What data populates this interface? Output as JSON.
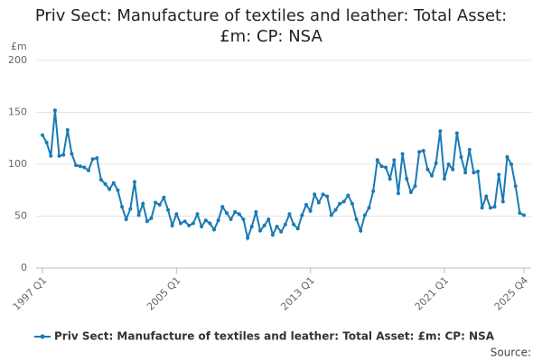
{
  "chart_data": {
    "type": "line",
    "title": "Priv Sect: Manufacture of textiles and leather: Total Asset: £m: CP: NSA",
    "y_label": "£m",
    "source": "Source:",
    "categories": [
      "1997 Q1",
      null,
      null,
      null,
      null,
      null,
      null,
      null,
      null,
      null,
      null,
      null,
      null,
      null,
      null,
      null,
      null,
      null,
      null,
      null,
      null,
      null,
      null,
      null,
      null,
      null,
      null,
      null,
      null,
      null,
      null,
      null,
      "2005 Q1",
      null,
      null,
      null,
      null,
      null,
      null,
      null,
      null,
      null,
      null,
      null,
      null,
      null,
      null,
      null,
      null,
      null,
      null,
      null,
      null,
      null,
      null,
      null,
      null,
      null,
      null,
      null,
      null,
      null,
      null,
      null,
      "2013 Q1",
      null,
      null,
      null,
      null,
      null,
      null,
      null,
      null,
      null,
      null,
      null,
      null,
      null,
      null,
      null,
      null,
      null,
      null,
      null,
      null,
      null,
      null,
      null,
      null,
      null,
      null,
      null,
      null,
      null,
      null,
      null,
      "2021 Q1",
      null,
      null,
      null,
      null,
      null,
      null,
      null,
      null,
      null,
      null,
      null,
      null,
      null,
      null,
      null,
      null,
      null,
      null,
      "2025 Q4"
    ],
    "series": [
      {
        "name": "Priv Sect: Manufacture of textiles and leather: Total Asset: £m: CP: NSA",
        "color": "#1a7ab5",
        "values": [
          128,
          121,
          108,
          152,
          108,
          109,
          133,
          110,
          99,
          98,
          97,
          94,
          105,
          106,
          85,
          81,
          76,
          82,
          75,
          59,
          47,
          57,
          83,
          51,
          62,
          45,
          48,
          63,
          61,
          68,
          56,
          41,
          52,
          43,
          45,
          41,
          43,
          52,
          40,
          46,
          43,
          37,
          46,
          59,
          53,
          47,
          54,
          52,
          47,
          29,
          40,
          54,
          36,
          41,
          47,
          32,
          40,
          35,
          42,
          52,
          42,
          38,
          51,
          61,
          55,
          71,
          63,
          71,
          69,
          51,
          56,
          62,
          64,
          70,
          62,
          47,
          36,
          51,
          58,
          74,
          104,
          98,
          97,
          86,
          104,
          72,
          110,
          86,
          73,
          79,
          112,
          113,
          95,
          89,
          101,
          132,
          86,
          100,
          95,
          130,
          107,
          92,
          114,
          92,
          93,
          58,
          69,
          58,
          59,
          90,
          64,
          107,
          100,
          79,
          53,
          51
        ]
      }
    ],
    "ylim": [
      0,
      200
    ],
    "yticks": [
      0,
      50,
      100,
      150,
      200
    ],
    "grid": true
  }
}
